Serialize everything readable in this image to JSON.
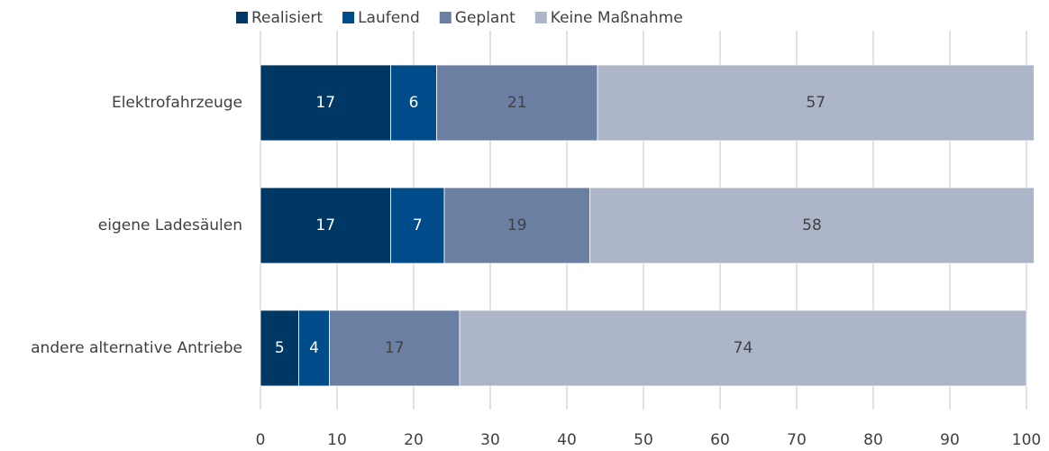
{
  "chart_data": {
    "type": "stacked_barh",
    "categories": [
      "Elektrofahrzeuge",
      "eigene Ladesäulen",
      "andere alternative Antriebe"
    ],
    "series": [
      {
        "name": "Realisiert",
        "color": "#003865",
        "values": [
          17,
          17,
          5
        ]
      },
      {
        "name": "Laufend",
        "color": "#004c8a",
        "values": [
          6,
          7,
          4
        ]
      },
      {
        "name": "Geplant",
        "color": "#6b7fa3",
        "values": [
          21,
          19,
          17
        ]
      },
      {
        "name": "Keine Maßnahme",
        "color": "#adb5c8",
        "values": [
          57,
          58,
          74
        ]
      }
    ],
    "xlim": [
      0,
      100
    ],
    "xticks": [
      0,
      10,
      20,
      30,
      40,
      50,
      60,
      70,
      80,
      90,
      100
    ],
    "grid": true,
    "legend": "top"
  }
}
